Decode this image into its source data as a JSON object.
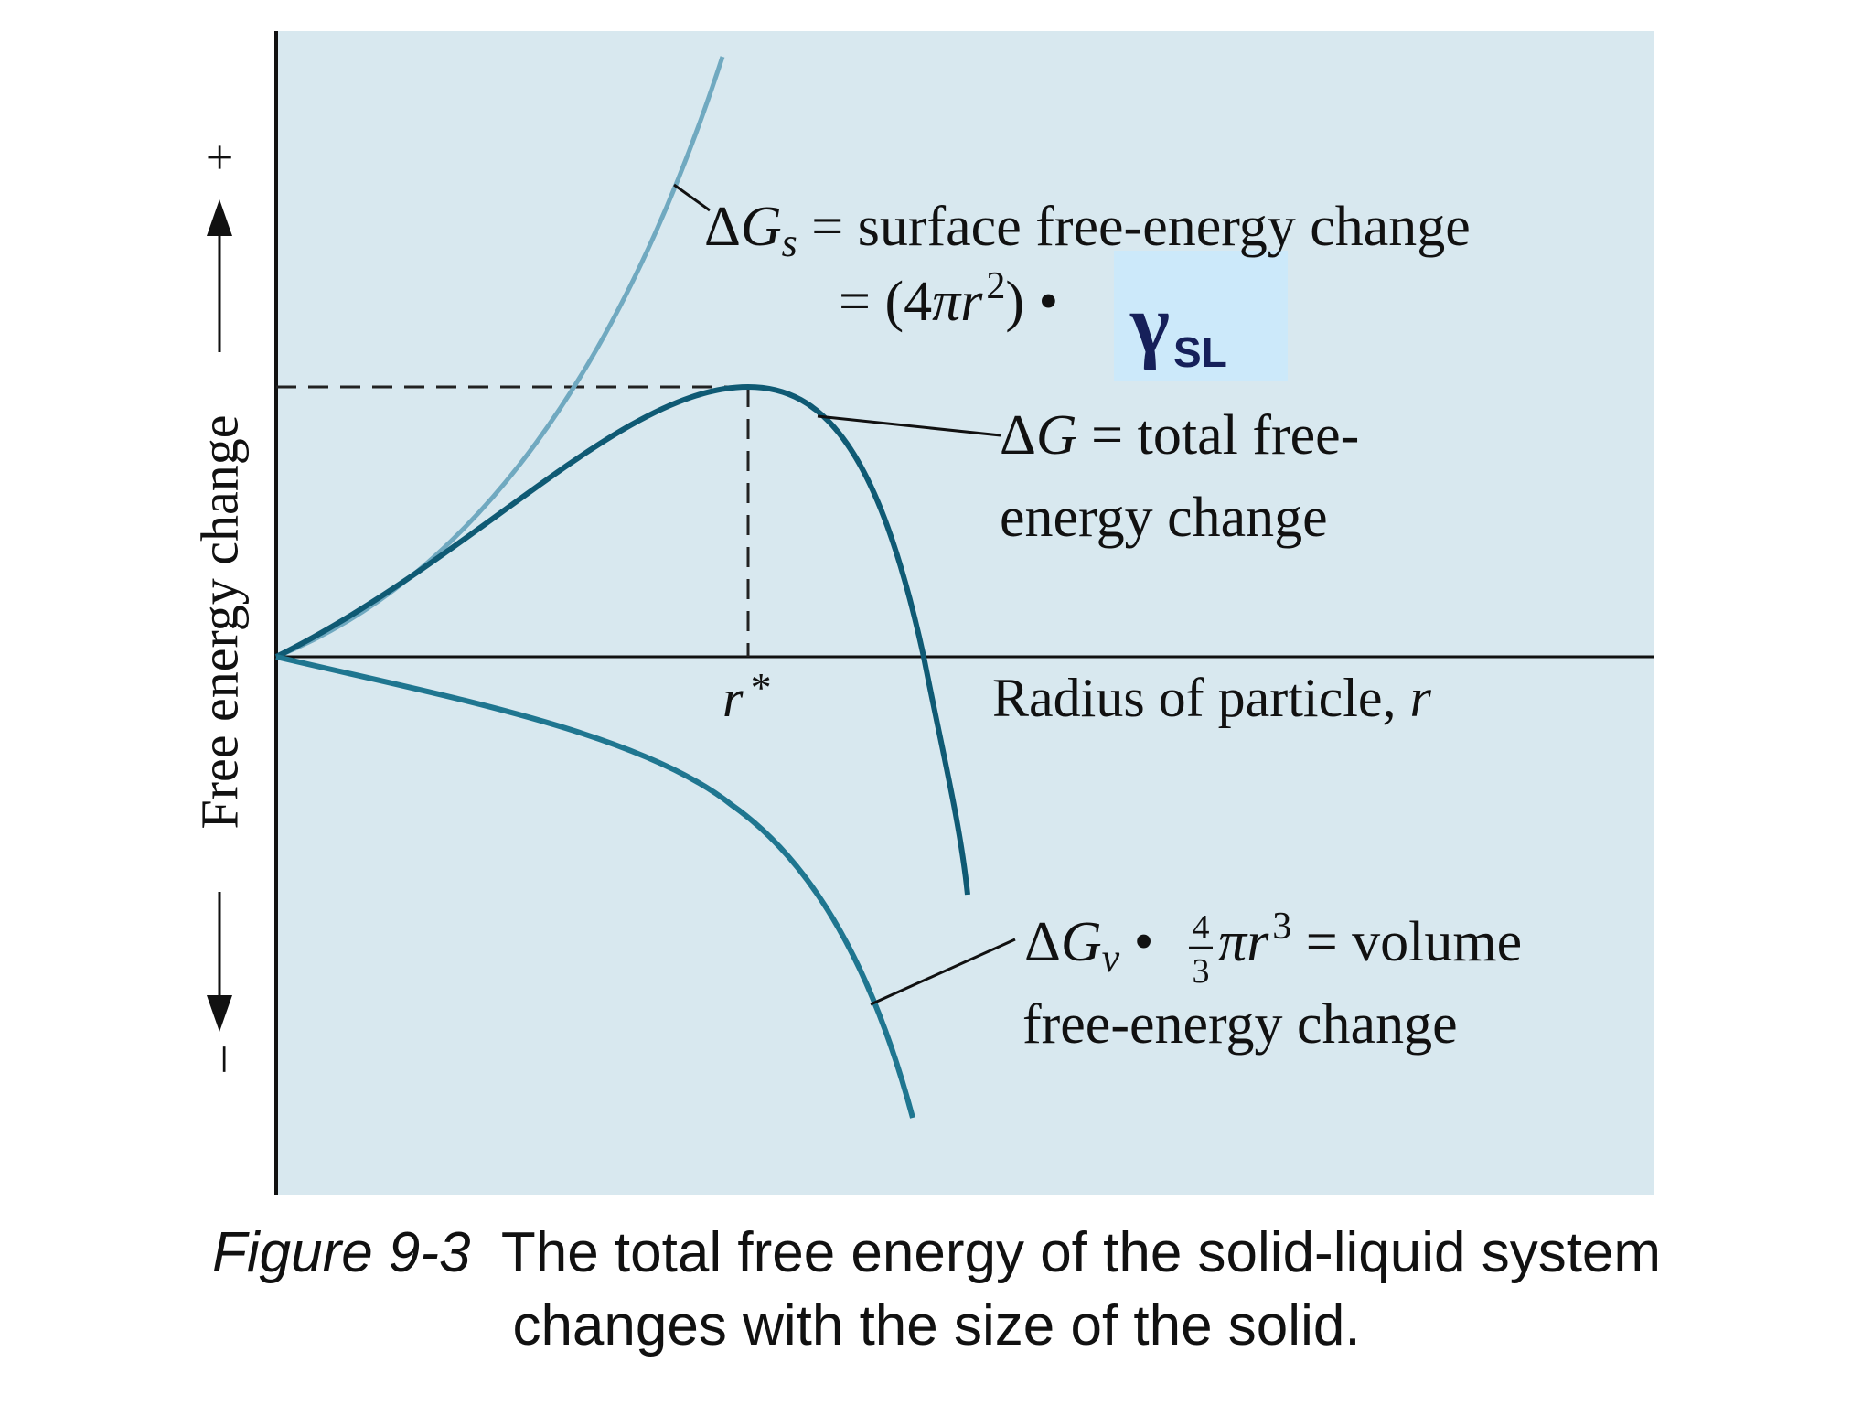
{
  "colors": {
    "panel_bg": "#d8e8ef",
    "highlight_bg": "#cce9fa",
    "surface_curve": "#70a9c0",
    "total_curve": "#0f5a74",
    "volume_curve": "#1f7690",
    "axis": "#111111",
    "text": "#111111",
    "gamma_text": "#16205a"
  },
  "y_axis": {
    "label": "Free energy change",
    "plus": "+",
    "minus": "–"
  },
  "x_axis": {
    "label_main": "Radius of particle, ",
    "label_var": "r"
  },
  "r_star": {
    "var": "r",
    "sup": "*"
  },
  "surface_label": {
    "delta": "Δ",
    "G": "G",
    "sub": "s",
    "rest_line1": " = surface free-energy change",
    "line2_prefix": "= (4",
    "pi": "π",
    "r": "r",
    "exp": "2",
    "line2_suffix": ") •",
    "gamma": "γ",
    "gamma_sub": "SL"
  },
  "total_label": {
    "delta": "Δ",
    "G": "G",
    "rest_line1": " = total free-",
    "line2": "energy change"
  },
  "volume_label": {
    "delta": "Δ",
    "G": "G",
    "sub": "v",
    "bullet": " • ",
    "frac_num": "4",
    "frac_den": "3",
    "pi": "π",
    "r": "r",
    "exp": "3",
    "rest_line1": " = volume",
    "line2": "free-energy change"
  },
  "caption": {
    "fig_num": "Figure 9-3",
    "line1_rest": "  The total free energy of the solid-liquid system",
    "line2": "changes with the size of the solid."
  }
}
